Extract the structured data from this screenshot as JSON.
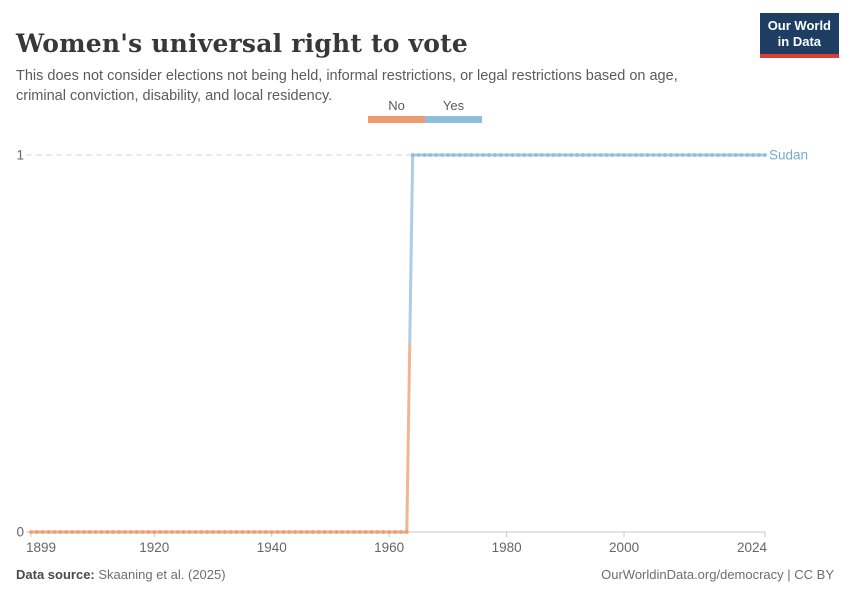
{
  "header": {
    "title": "Women's universal right to vote",
    "subtitle": "This does not consider elections not being held, informal restrictions, or legal restrictions based on age, criminal conviction, disability, and local residency.",
    "logo": {
      "line1": "Our World",
      "line2": "in Data",
      "bg_color": "#1d3d63",
      "accent_color": "#dc3e32"
    }
  },
  "legend": {
    "items": [
      {
        "label": "No",
        "color": "#EE9C6F"
      },
      {
        "label": "Yes",
        "color": "#8DBEDC"
      }
    ]
  },
  "chart_data": {
    "type": "line",
    "title": "Women's universal right to vote",
    "entity": "Sudan",
    "entity_label_color": "#77ABCF",
    "xlim": [
      1899,
      2024
    ],
    "ylim": [
      0,
      1
    ],
    "x_ticks": [
      1899,
      1920,
      1940,
      1960,
      1980,
      2000,
      2024
    ],
    "y_ticks": [
      0,
      1
    ],
    "grid": "dashed horizontal gridline at y=1, solid axis line at y=0",
    "legend_position": "top-center",
    "marker": "circle-every-year",
    "series": [
      {
        "name": "Sudan",
        "style": "step",
        "segments": [
          {
            "category": "No",
            "value": 0,
            "start_year": 1899,
            "end_year": 1963,
            "color": "#EE9C6F"
          },
          {
            "category": "Yes",
            "value": 1,
            "start_year": 1964,
            "end_year": 2024,
            "color": "#8DBEDC"
          }
        ]
      }
    ],
    "axis_color": "#c8c8c8",
    "tick_label_color": "#666666",
    "gridline_color": "#d5d5d5"
  },
  "footer": {
    "source_label": "Data source:",
    "source_value": "Skaaning et al. (2025)",
    "license": "OurWorldinData.org/democracy | CC BY"
  }
}
